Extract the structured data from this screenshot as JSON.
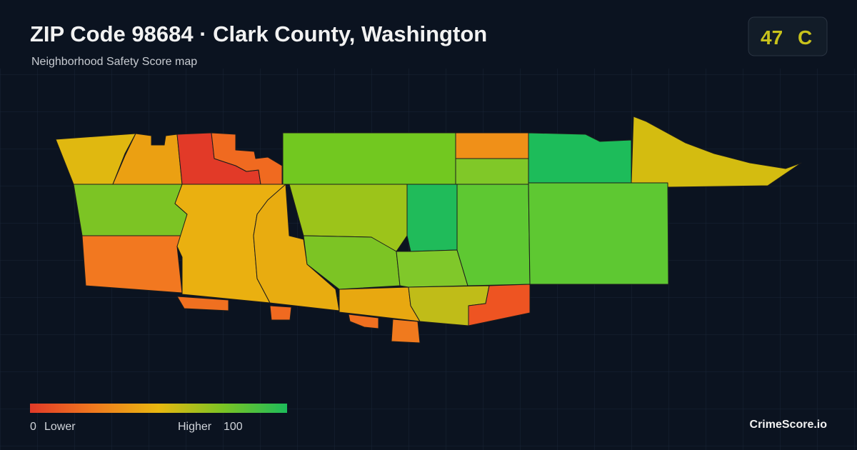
{
  "header": {
    "title": "ZIP Code 98684 · Clark County, Washington",
    "subtitle": "Neighborhood Safety Score map"
  },
  "score": {
    "value": 47,
    "grade": "C"
  },
  "legend": {
    "min": 0,
    "min_label": "Lower",
    "max_label": "Higher",
    "max": 100
  },
  "brand": "CrimeScore.io"
}
